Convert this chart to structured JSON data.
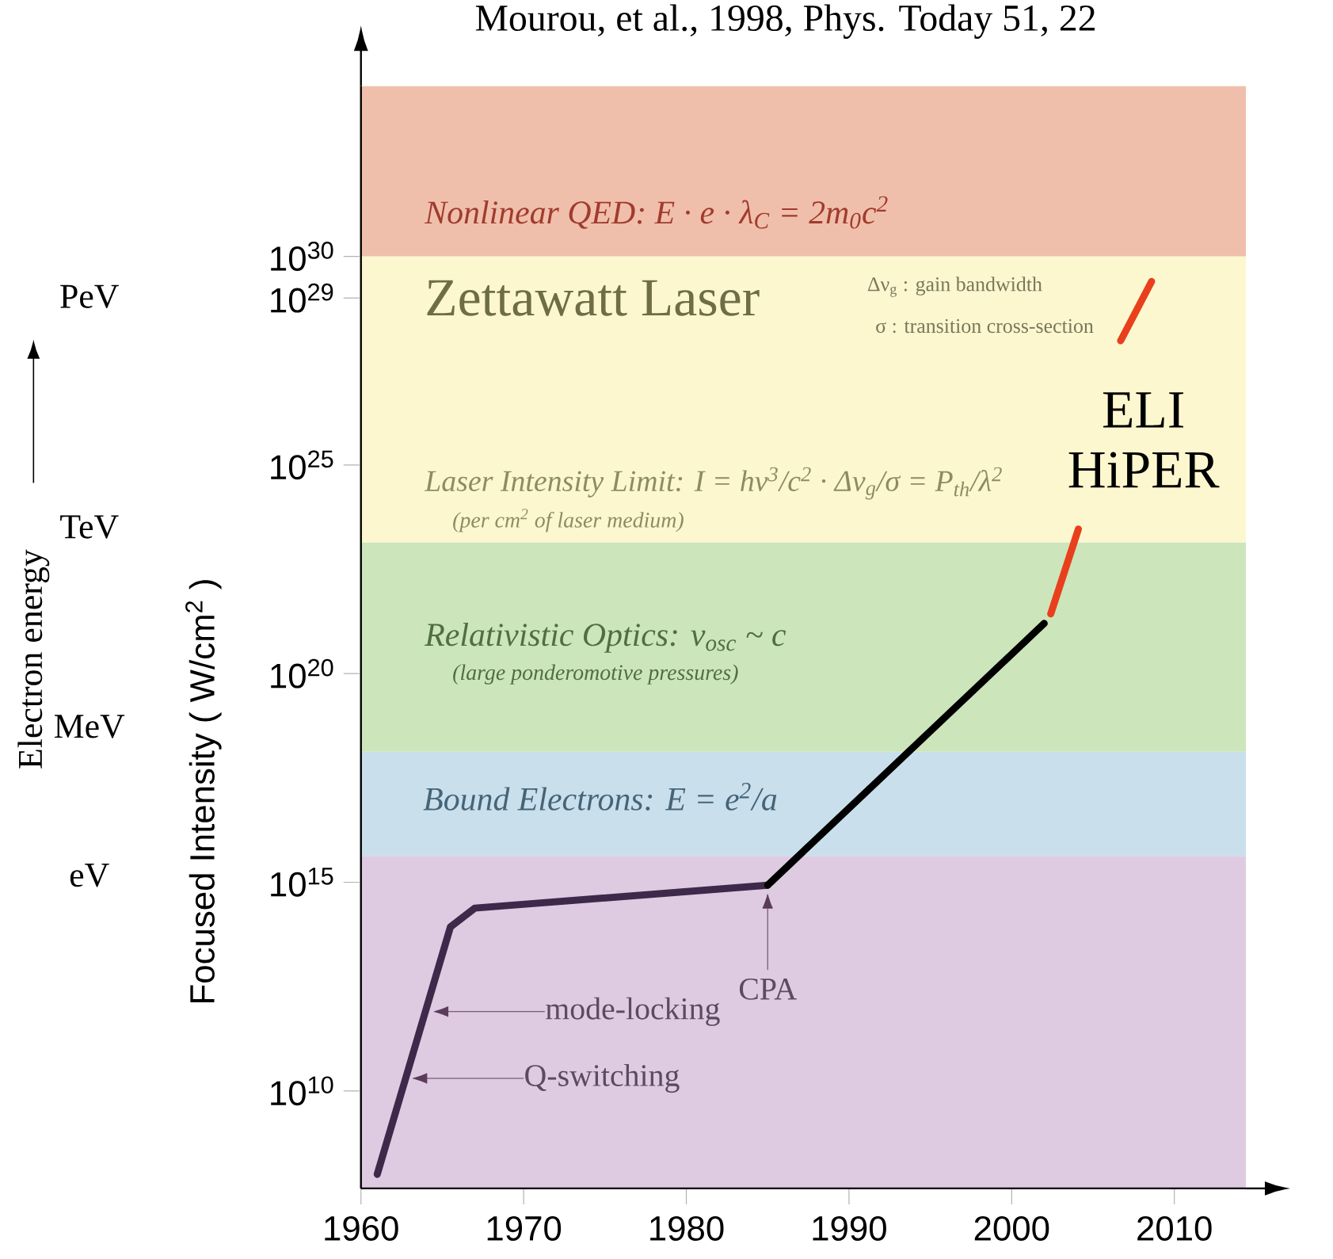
{
  "chart_data": {
    "type": "line",
    "title": "Mourou, et al., 1998, Phys. Today 51, 22",
    "ylabel": "Focused Intensity ( W/cm$^{2}$ )",
    "log": "y",
    "marker": "none",
    "line_style": "solid",
    "xlim": [
      1960,
      2014.4
    ],
    "xticks": [
      1960,
      1970,
      1980,
      1990,
      2000,
      2010
    ],
    "ylim": [
      46000000.0,
      1.2e+34
    ],
    "yticks": [
      {
        "value": 10000000000.0,
        "label": "10$^{10}$"
      },
      {
        "value": 1000000000000000.0,
        "label": "10$^{15}$"
      },
      {
        "value": 1e+20,
        "label": "10$^{20}$"
      },
      {
        "value": 1e+25,
        "label": "10$^{25}$"
      },
      {
        "value": 1e+29,
        "label": "10$^{29}$"
      },
      {
        "value": 1e+30,
        "label": "10$^{30}$"
      }
    ],
    "bands": [
      {
        "axis": "y",
        "from": 46000000.0,
        "to": 4300000000000000.0,
        "color": "#dfcbe1"
      },
      {
        "axis": "y",
        "from": 4300000000000000.0,
        "to": 1.35e+18,
        "color": "#c9e0ec"
      },
      {
        "axis": "y",
        "from": 1.35e+18,
        "to": 1.4e+23,
        "color": "#cde5bb"
      },
      {
        "axis": "y",
        "from": 1.4e+23,
        "to": 1e+30,
        "color": "#fcf7cf"
      },
      {
        "axis": "y",
        "from": 1e+30,
        "to": 1.2e+34,
        "color": "#f0bfab"
      }
    ],
    "series": [
      {
        "color": "#3d2a4a",
        "x": [
          1961,
          1965.5,
          1967,
          1985
        ],
        "values": [
          100000000.0,
          85000000000000.0,
          240000000000000.0,
          850000000000000.0
        ]
      },
      {
        "color": "#000000",
        "x": [
          1985,
          2002
        ],
        "values": [
          850000000000000.0,
          1.6e+21
        ]
      },
      {
        "color": "#e8401c",
        "x": [
          2002.4,
          2004.1,
          2005.5,
          2006.7,
          2008.6
        ],
        "values": [
          2.7e+21,
          2.9e+23,
          null,
          9.5e+27,
          2.5e+29
        ]
      }
    ],
    "annotations": [
      "Nonlinear QED:   E · e · λ$_{C}$ = 2m$_{0}$c$^{2}$",
      "Zettawatt Laser",
      "Δν$_{g}$ : gain bandwidth",
      "σ  : transition cross-section",
      "Laser Intensity Limit:  I = hν$^{3}$/c$^{2}$ · Δν$_{g}$/σ = P$_{th}$/λ$^{2}$",
      "(per cm$^{2}$ of laser medium)",
      "Relativistic Optics:  v$_{osc}$ ~ c",
      "(large ponderomotive pressures)",
      "Bound Electrons:   E = e$^{2}$/a",
      "ELI HiPER",
      "PeV",
      "TeV",
      "MeV",
      "eV",
      "Electron energy",
      "mode-locking",
      "Q-switching",
      "CPA"
    ]
  }
}
